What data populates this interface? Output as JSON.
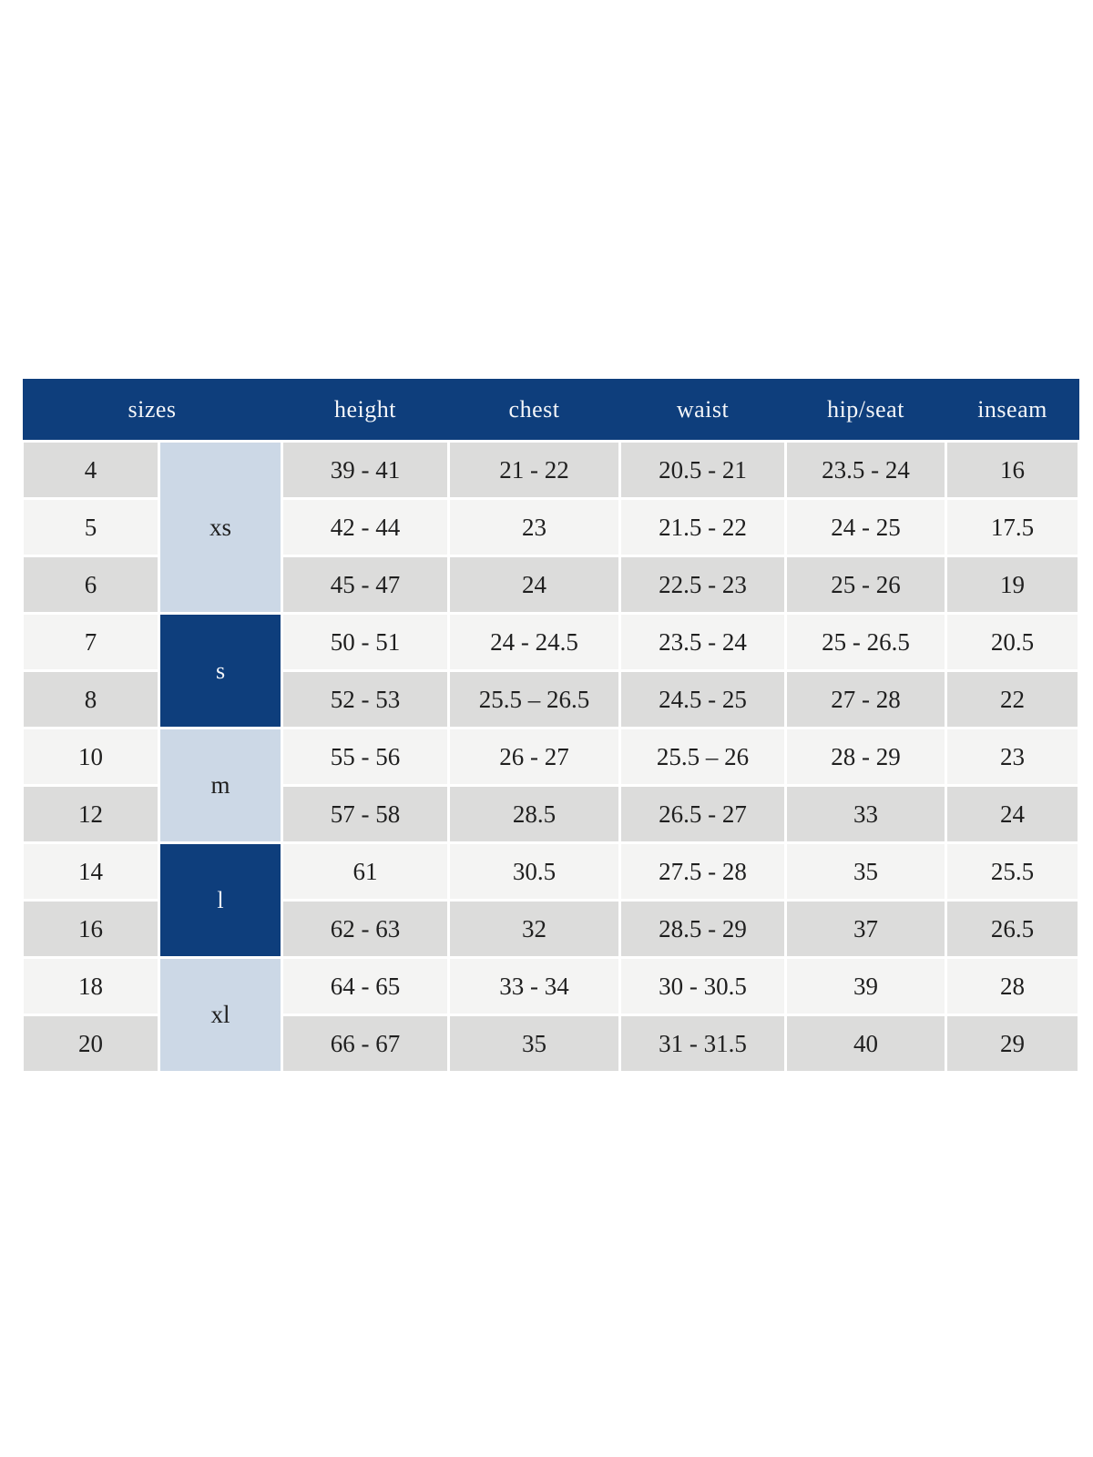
{
  "table": {
    "column_headers": [
      {
        "label": "sizes"
      },
      {
        "label": "height"
      },
      {
        "label": "chest"
      },
      {
        "label": "waist"
      },
      {
        "label": "hip/seat"
      },
      {
        "label": "inseam"
      }
    ],
    "size_groups": [
      {
        "label": "xs",
        "variant": "light",
        "rows": [
          {
            "size": "4",
            "height": "39 - 41",
            "chest": "21 - 22",
            "waist": "20.5 - 21",
            "hip_seat": "23.5 - 24",
            "inseam": "16"
          },
          {
            "size": "5",
            "height": "42 - 44",
            "chest": "23",
            "waist": "21.5 - 22",
            "hip_seat": "24 - 25",
            "inseam": "17.5"
          },
          {
            "size": "6",
            "height": "45 - 47",
            "chest": "24",
            "waist": "22.5 - 23",
            "hip_seat": "25 - 26",
            "inseam": "19"
          }
        ]
      },
      {
        "label": "s",
        "variant": "dark",
        "rows": [
          {
            "size": "7",
            "height": "50 - 51",
            "chest": "24 - 24.5",
            "waist": "23.5 - 24",
            "hip_seat": "25 - 26.5",
            "inseam": "20.5"
          },
          {
            "size": "8",
            "height": "52 - 53",
            "chest": "25.5 – 26.5",
            "waist": "24.5 - 25",
            "hip_seat": "27 - 28",
            "inseam": "22"
          }
        ]
      },
      {
        "label": "m",
        "variant": "light",
        "rows": [
          {
            "size": "10",
            "height": "55 - 56",
            "chest": "26 - 27",
            "waist": "25.5 – 26",
            "hip_seat": "28 - 29",
            "inseam": "23"
          },
          {
            "size": "12",
            "height": "57 - 58",
            "chest": "28.5",
            "waist": "26.5 - 27",
            "hip_seat": "33",
            "inseam": "24"
          }
        ]
      },
      {
        "label": "l",
        "variant": "dark",
        "rows": [
          {
            "size": "14",
            "height": "61",
            "chest": "30.5",
            "waist": "27.5 - 28",
            "hip_seat": "35",
            "inseam": "25.5"
          },
          {
            "size": "16",
            "height": "62 - 63",
            "chest": "32",
            "waist": "28.5 - 29",
            "hip_seat": "37",
            "inseam": "26.5"
          }
        ]
      },
      {
        "label": "xl",
        "variant": "light",
        "rows": [
          {
            "size": "18",
            "height": "64 - 65",
            "chest": "33 - 34",
            "waist": "30 - 30.5",
            "hip_seat": "39",
            "inseam": "28"
          },
          {
            "size": "20",
            "height": "66 - 67",
            "chest": "35",
            "waist": "31 - 31.5",
            "hip_seat": "40",
            "inseam": "29"
          }
        ]
      }
    ],
    "colors": {
      "header_bg": "#0e3e7c",
      "header_text": "#f4f6f9",
      "group_dark_bg": "#0e3e7c",
      "group_light_bg": "#ccd8e6",
      "row_shaded_bg": "#dcdcdb",
      "row_plain_bg": "#f4f4f3",
      "body_text": "#1f1f1f"
    }
  }
}
